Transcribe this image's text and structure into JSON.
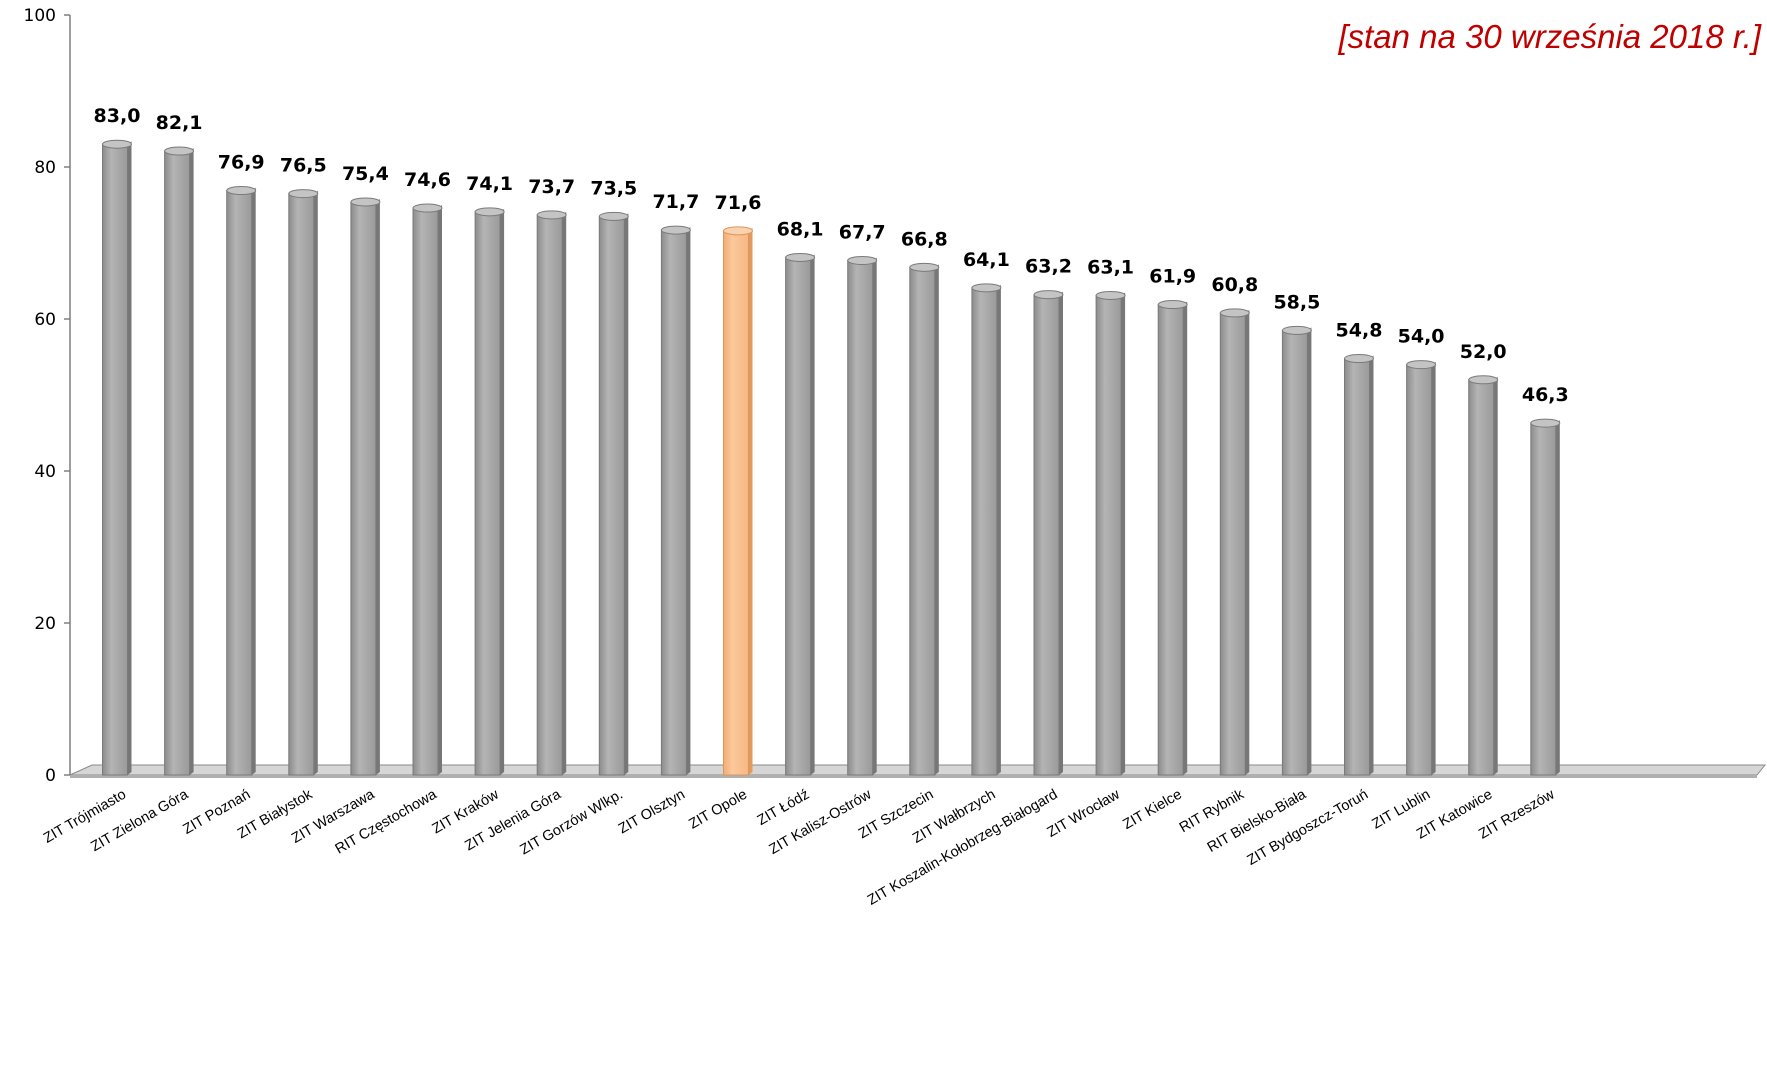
{
  "note": "[stan na 30 września 2018 r.]",
  "colors": {
    "bar": "#a3a3a3",
    "highlight": "#fac090",
    "note": "#c00000"
  },
  "chart_data": {
    "type": "bar",
    "categories": [
      "ZIT Trójmiasto",
      "ZIT Zielona Góra",
      "ZIT Poznań",
      "ZIT Białystok",
      "ZIT Warszawa",
      "RIT Częstochowa",
      "ZIT Kraków",
      "ZIT Jelenia Góra",
      "ZIT Gorzów Wlkp.",
      "ZIT Olsztyn",
      "ZIT Opole",
      "ZIT Łódź",
      "ZIT Kalisz-Ostrów",
      "ZIT Szczecin",
      "ZIT Wałbrzych",
      "ZIT Koszalin-Kołobrzeg-Białogard",
      "ZIT Wrocław",
      "ZIT Kielce",
      "RIT Rybnik",
      "RIT Bielsko-Biała",
      "ZIT Bydgoszcz-Toruń",
      "ZIT Lublin",
      "ZIT Katowice",
      "ZIT Rzeszów"
    ],
    "values": [
      83.0,
      82.1,
      76.9,
      76.5,
      75.4,
      74.6,
      74.1,
      73.7,
      73.5,
      71.7,
      71.6,
      68.1,
      67.7,
      66.8,
      64.1,
      63.2,
      63.1,
      61.9,
      60.8,
      58.5,
      54.8,
      54.0,
      52.0,
      46.3
    ],
    "value_labels": [
      "83,0",
      "82,1",
      "76,9",
      "76,5",
      "75,4",
      "74,6",
      "74,1",
      "73,7",
      "73,5",
      "71,7",
      "71,6",
      "68,1",
      "67,7",
      "66,8",
      "64,1",
      "63,2",
      "63,1",
      "61,9",
      "60,8",
      "58,5",
      "54,8",
      "54,0",
      "52,0",
      "46,3"
    ],
    "highlighted_category": "ZIT Opole",
    "yticks": [
      0,
      20,
      40,
      60,
      80,
      100
    ],
    "ylim": [
      0,
      100
    ],
    "grid": false,
    "legend": "none"
  }
}
